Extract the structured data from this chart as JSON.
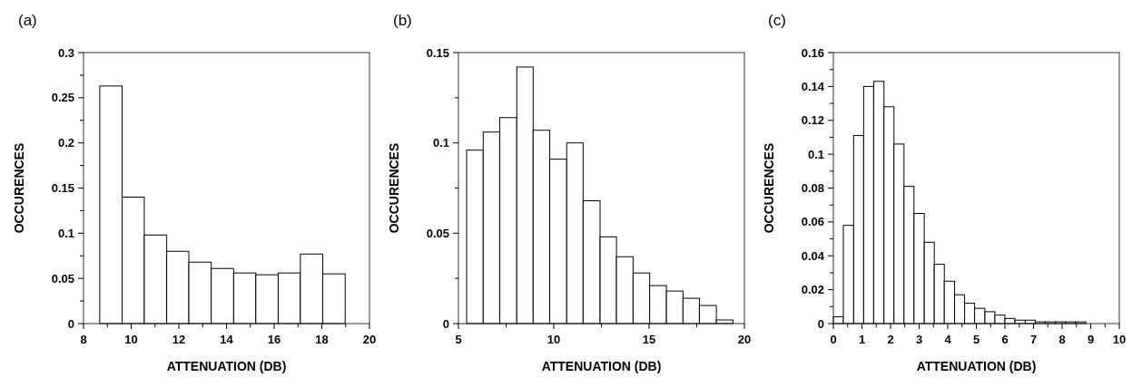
{
  "chart_data": [
    {
      "type": "histogram",
      "title": "(a)",
      "xlabel": "ATTENUATION (DB)",
      "ylabel": "OCCURENCES",
      "color": "#ffffff",
      "grid": false,
      "bins": [
        8.68,
        9.62,
        10.55,
        11.49,
        12.42,
        13.36,
        14.3,
        15.23,
        16.17,
        17.1,
        18.04,
        18.98
      ],
      "values": [
        0.263,
        0.14,
        0.098,
        0.08,
        0.068,
        0.061,
        0.056,
        0.054,
        0.056,
        0.077,
        0.055
      ],
      "xlim": [
        8,
        20
      ],
      "ylim": [
        0,
        0.3
      ],
      "xticks": [
        8,
        {
          "value": 9,
          "label": null
        },
        10,
        {
          "value": 11,
          "label": null
        },
        12,
        {
          "value": 13,
          "label": null
        },
        14,
        {
          "value": 15,
          "label": null
        },
        16,
        {
          "value": 17,
          "label": null
        },
        18,
        {
          "value": 19,
          "label": null
        },
        20
      ],
      "yticks": [
        0,
        {
          "value": 0.025,
          "label": null
        },
        0.05,
        {
          "value": 0.075,
          "label": null
        },
        0.1,
        {
          "value": 0.125,
          "label": null
        },
        0.15,
        {
          "value": 0.175,
          "label": null
        },
        0.2,
        {
          "value": 0.225,
          "label": null
        },
        0.25,
        {
          "value": 0.275,
          "label": null
        },
        0.3
      ]
    },
    {
      "type": "histogram",
      "title": "(b)",
      "xlabel": "ATTENUATION (DB)",
      "ylabel": "OCCURENCES",
      "color": "#ffffff",
      "grid": false,
      "bins": [
        5.43,
        6.3,
        7.17,
        8.06,
        8.92,
        9.79,
        10.68,
        11.54,
        12.43,
        13.29,
        14.16,
        15.03,
        15.91,
        16.78,
        17.64,
        18.53,
        19.4
      ],
      "values": [
        0.096,
        0.106,
        0.114,
        0.142,
        0.107,
        0.091,
        0.1,
        0.068,
        0.048,
        0.037,
        0.028,
        0.021,
        0.018,
        0.014,
        0.01,
        0.002
      ],
      "xlim": [
        5,
        20
      ],
      "ylim": [
        0,
        0.15
      ],
      "xticks": [
        5,
        {
          "value": 7.5,
          "label": null
        },
        10,
        {
          "value": 12.5,
          "label": null
        },
        15,
        {
          "value": 17.5,
          "label": null
        },
        20
      ],
      "yticks": [
        0,
        {
          "value": 0.025,
          "label": null
        },
        0.05,
        {
          "value": 0.075,
          "label": null
        },
        0.1,
        {
          "value": 0.125,
          "label": null
        },
        0.15
      ]
    },
    {
      "type": "histogram",
      "title": "(c)",
      "xlabel": "ATTENUATION (DB)",
      "ylabel": "OCCURENCES",
      "color": "#ffffff",
      "grid": false,
      "bins": [
        0,
        0.35,
        0.71,
        1.06,
        1.41,
        1.77,
        2.12,
        2.47,
        2.82,
        3.18,
        3.53,
        3.88,
        4.24,
        4.59,
        4.94,
        5.3,
        5.65,
        6.0,
        6.35,
        6.71,
        7.06,
        7.41,
        7.77,
        8.12,
        8.47,
        8.83
      ],
      "values": [
        0.004,
        0.058,
        0.111,
        0.14,
        0.143,
        0.128,
        0.106,
        0.081,
        0.065,
        0.048,
        0.035,
        0.025,
        0.017,
        0.012,
        0.009,
        0.007,
        0.005,
        0.003,
        0.002,
        0.002,
        0.001,
        0.001,
        0.001,
        0.001,
        0.001
      ],
      "xlim": [
        0,
        10
      ],
      "ylim": [
        0,
        0.16
      ],
      "xticks": [
        0,
        {
          "value": 0.5,
          "label": null
        },
        1,
        {
          "value": 1.5,
          "label": null
        },
        2,
        {
          "value": 2.5,
          "label": null
        },
        3,
        {
          "value": 3.5,
          "label": null
        },
        4,
        {
          "value": 4.5,
          "label": null
        },
        5,
        {
          "value": 5.5,
          "label": null
        },
        6,
        {
          "value": 6.5,
          "label": null
        },
        7,
        {
          "value": 7.5,
          "label": null
        },
        8,
        {
          "value": 8.5,
          "label": null
        },
        9,
        {
          "value": 9.5,
          "label": null
        },
        10
      ],
      "yticks": [
        0,
        {
          "value": 0.01,
          "label": null
        },
        0.02,
        {
          "value": 0.03,
          "label": null
        },
        0.04,
        {
          "value": 0.05,
          "label": null
        },
        0.06,
        {
          "value": 0.07,
          "label": null
        },
        0.08,
        {
          "value": 0.09,
          "label": null
        },
        0.1,
        {
          "value": 0.11,
          "label": null
        },
        0.12,
        {
          "value": 0.13,
          "label": null
        },
        0.14,
        {
          "value": 0.15,
          "label": null
        },
        0.16
      ]
    }
  ]
}
